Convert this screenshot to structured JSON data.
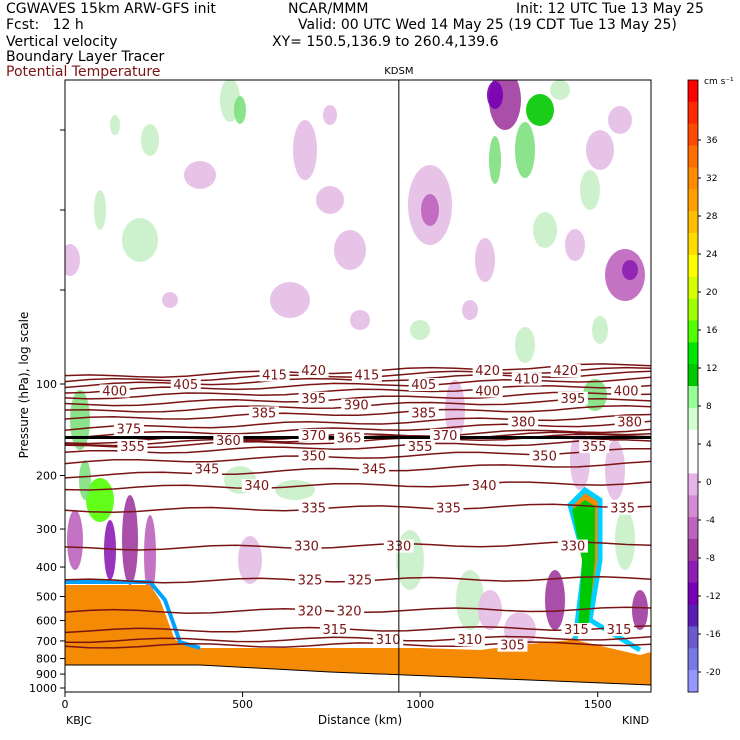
{
  "header": {
    "model": "CGWAVES 15km ARW-GFS init",
    "org": "NCAR/MMM",
    "init": "Init: 12 UTC Tue 13 May 25",
    "fcst": "Fcst:   12 h",
    "valid": "Valid: 00 UTC Wed 14 May 25 (19 CDT Tue 13 May 25)",
    "var1": "Vertical velocity",
    "var2": "Boundary Layer Tracer",
    "var3": "Potential Temperature",
    "xy": "XY= 150.5,136.9 to 260.4,139.6"
  },
  "colors": {
    "theta": "#7a1414",
    "terrain": "#f58a05",
    "border": "#000000"
  },
  "chart_data": {
    "type": "heatmap",
    "xlabel": "Distance (km)",
    "ylabel": "Pressure (hPa), log scale",
    "xlim": [
      0,
      1650
    ],
    "x_ticks": [
      0,
      500,
      1000,
      1500
    ],
    "y_log_scale": true,
    "y_ticks": [
      100,
      200,
      300,
      400,
      500,
      600,
      700,
      800,
      900,
      1000
    ],
    "station_left": "KBJC",
    "station_right": "KIND",
    "station_mid": "KDSM",
    "station_mid_x": 940,
    "colorbar": {
      "unit": "cm s⁻¹",
      "colors": [
        "#ff0000",
        "#ff2800",
        "#ff4b00",
        "#ff6e00",
        "#ff8c00",
        "#ffa000",
        "#ffbe00",
        "#ffdc00",
        "#ffff00",
        "#d7ff00",
        "#a0ff00",
        "#50ff00",
        "#00e600",
        "#00c800",
        "#96ff96",
        "#d2ffd2",
        "#ffffff",
        "#ffffff",
        "#e6b4e6",
        "#d28cd2",
        "#be64be",
        "#a03ca0",
        "#8c1eb4",
        "#7800b4",
        "#5a1eb4",
        "#6a5acd",
        "#7878e6",
        "#9696ff"
      ],
      "ticks": [
        "36",
        "32",
        "28",
        "24",
        "20",
        "16",
        "12",
        "8",
        "4",
        "0",
        "-4",
        "-8",
        "-12",
        "-16",
        "-20"
      ]
    },
    "theta_contours": [
      {
        "label": "305",
        "p": 720
      },
      {
        "label": "310",
        "p": 690
      },
      {
        "label": "315",
        "p": 640
      },
      {
        "label": "320",
        "p": 555
      },
      {
        "label": "325",
        "p": 440
      },
      {
        "label": "330",
        "p": 340
      },
      {
        "label": "335",
        "p": 255
      },
      {
        "label": "340",
        "p": 215
      },
      {
        "label": "345",
        "p": 190
      },
      {
        "label": "350",
        "p": 172
      },
      {
        "label": "355",
        "p": 160
      },
      {
        "label": "360",
        "p": 153
      },
      {
        "label": "365",
        "p": 150
      },
      {
        "label": "370",
        "p": 147
      },
      {
        "label": "375",
        "p": 140
      },
      {
        "label": "380",
        "p": 133
      },
      {
        "label": "385",
        "p": 124
      },
      {
        "label": "390",
        "p": 117
      },
      {
        "label": "395",
        "p": 111
      },
      {
        "label": "400",
        "p": 105
      },
      {
        "label": "405",
        "p": 100
      },
      {
        "label": "410",
        "p": 96
      },
      {
        "label": "415",
        "p": 93
      },
      {
        "label": "420",
        "p": 90
      }
    ],
    "theta_labels_shown": [
      {
        "t": "415",
        "x": 590
      },
      {
        "t": "420",
        "x": 700
      },
      {
        "t": "415",
        "x": 850
      },
      {
        "t": "420",
        "x": 1190
      },
      {
        "t": "410",
        "x": 1300
      },
      {
        "t": "420",
        "x": 1410
      },
      {
        "t": "405",
        "x": 340
      },
      {
        "t": "400",
        "x": 140
      },
      {
        "t": "405",
        "x": 1010
      },
      {
        "t": "400",
        "x": 1190
      },
      {
        "t": "400",
        "x": 1580
      },
      {
        "t": "395",
        "x": 700
      },
      {
        "t": "390",
        "x": 820
      },
      {
        "t": "395",
        "x": 1430
      },
      {
        "t": "385",
        "x": 560
      },
      {
        "t": "385",
        "x": 1010
      },
      {
        "t": "375",
        "x": 180
      },
      {
        "t": "370",
        "x": 700
      },
      {
        "t": "380",
        "x": 1290
      },
      {
        "t": "380",
        "x": 1590
      },
      {
        "t": "360",
        "x": 460
      },
      {
        "t": "365",
        "x": 800
      },
      {
        "t": "370",
        "x": 1070
      },
      {
        "t": "355",
        "x": 190
      },
      {
        "t": "350",
        "x": 700
      },
      {
        "t": "355",
        "x": 1000
      },
      {
        "t": "355",
        "x": 1490
      },
      {
        "t": "345",
        "x": 400
      },
      {
        "t": "340",
        "x": 540
      },
      {
        "t": "345",
        "x": 870
      },
      {
        "t": "350",
        "x": 1350
      },
      {
        "t": "340",
        "x": 1180
      },
      {
        "t": "335",
        "x": 700
      },
      {
        "t": "335",
        "x": 1080
      },
      {
        "t": "335",
        "x": 1570
      },
      {
        "t": "330",
        "x": 680
      },
      {
        "t": "330",
        "x": 940
      },
      {
        "t": "330",
        "x": 1430
      },
      {
        "t": "325",
        "x": 690
      },
      {
        "t": "325",
        "x": 830
      },
      {
        "t": "320",
        "x": 690
      },
      {
        "t": "320",
        "x": 800
      },
      {
        "t": "315",
        "x": 760
      },
      {
        "t": "315",
        "x": 1440
      },
      {
        "t": "315",
        "x": 1560
      },
      {
        "t": "310",
        "x": 910
      },
      {
        "t": "310",
        "x": 1140
      },
      {
        "t": "305",
        "x": 1260
      }
    ]
  }
}
